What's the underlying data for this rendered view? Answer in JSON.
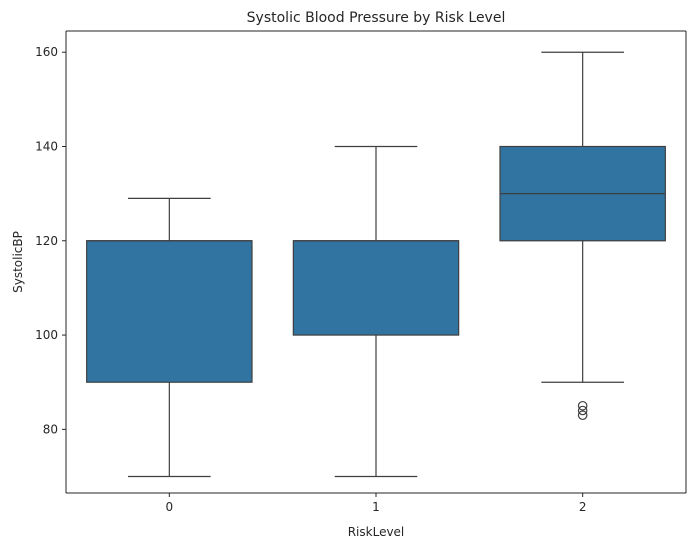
{
  "chart_data": {
    "type": "box",
    "title": "Systolic Blood Pressure by Risk Level",
    "xlabel": "RiskLevel",
    "ylabel": "SystolicBP",
    "categories": [
      "0",
      "1",
      "2"
    ],
    "ylim": [
      66.5,
      164.5
    ],
    "yticks": [
      80,
      100,
      120,
      140,
      160
    ],
    "grid": false,
    "box_color": "#3274a1",
    "line_color": "#3f3f3f",
    "boxes": [
      {
        "category": "0",
        "whisker_low": 70,
        "q1": 90,
        "median": 120,
        "q3": 120,
        "whisker_high": 129,
        "outliers": []
      },
      {
        "category": "1",
        "whisker_low": 70,
        "q1": 100,
        "median": 120,
        "q3": 120,
        "whisker_high": 140,
        "outliers": []
      },
      {
        "category": "2",
        "whisker_low": 90,
        "q1": 120,
        "median": 130,
        "q3": 140,
        "whisker_high": 160,
        "outliers": [
          85,
          84,
          83
        ]
      }
    ]
  }
}
